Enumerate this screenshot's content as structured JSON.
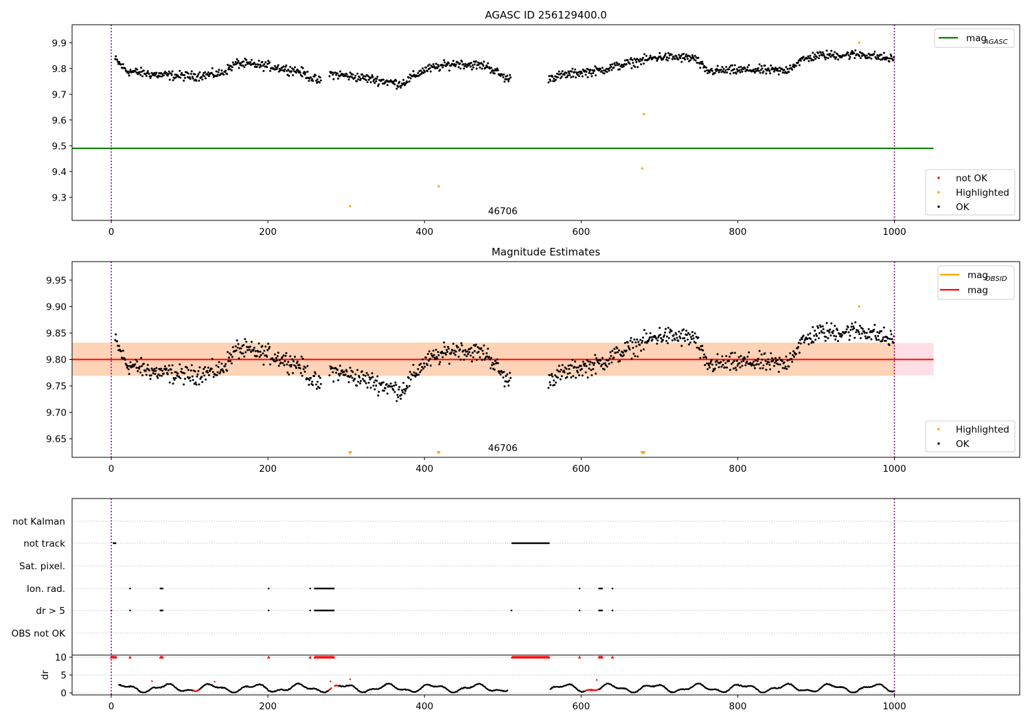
{
  "chart_data": [
    {
      "type": "scatter",
      "title": "AGASC ID 256129400.0",
      "ylim": [
        9.21,
        9.97
      ],
      "xlim": [
        -50,
        1160
      ],
      "x_ticks": [
        0,
        200,
        400,
        600,
        800,
        1000
      ],
      "y_ticks": [
        9.3,
        9.4,
        9.5,
        9.6,
        9.7,
        9.8,
        9.9
      ],
      "y_tick_labels": [
        "9.3",
        "9.4",
        "9.5",
        "9.6",
        "9.7",
        "9.8",
        "9.9"
      ],
      "obsid_label": "46706",
      "obsid_label_x": 500,
      "obs_boundaries": [
        0,
        1000
      ],
      "reference_line": {
        "name": "mag",
        "subscript": "AGASC",
        "value": 9.49,
        "x_range": [
          -50,
          1050
        ],
        "color": "#008000"
      },
      "legend_lines": [
        {
          "label": "mag",
          "subscript": "AGASC",
          "color": "#008000"
        }
      ],
      "legend_points": [
        {
          "label": "not OK",
          "color": "#ff0000"
        },
        {
          "label": "Highlighted",
          "color": "#ffa500"
        },
        {
          "label": "OK",
          "color": "#000000"
        }
      ],
      "series": [
        {
          "name": "OK",
          "color": "#000000",
          "description": "Star magnitude samples around 9.73–9.87 for x 5–510 and 560–1000"
        },
        {
          "name": "Highlighted",
          "color": "#ffa500",
          "x": [
            305,
            418,
            678,
            680,
            955
          ],
          "y": [
            9.265,
            9.342,
            9.412,
            9.623,
            9.9
          ]
        }
      ]
    },
    {
      "type": "scatter",
      "title": "Magnitude Estimates",
      "ylim": [
        9.615,
        9.985
      ],
      "xlim": [
        -50,
        1160
      ],
      "x_ticks": [
        0,
        200,
        400,
        600,
        800,
        1000
      ],
      "y_ticks": [
        9.65,
        9.7,
        9.75,
        9.8,
        9.85,
        9.9,
        9.95
      ],
      "y_tick_labels": [
        "9.65",
        "9.70",
        "9.75",
        "9.80",
        "9.85",
        "9.90",
        "9.95"
      ],
      "obsid_label": "46706",
      "obsid_label_x": 500,
      "obs_boundaries": [
        0,
        1000
      ],
      "mag_line": {
        "label": "mag",
        "value": 9.8,
        "x_range": [
          -50,
          1050
        ],
        "color": "#ff0000"
      },
      "mag_band": {
        "low": 9.77,
        "high": 9.831,
        "x_range": [
          -50,
          1050
        ],
        "color": "#ffc0cb"
      },
      "mag_obsid_band": {
        "low": 9.77,
        "high": 9.831,
        "x_range": [
          -50,
          1000
        ],
        "color": "#ffa500"
      },
      "legend_lines": [
        {
          "label": "mag",
          "subscript": "OBSID",
          "color": "#ffa500"
        },
        {
          "label": "mag",
          "subscript": "",
          "color": "#ff0000"
        }
      ],
      "legend_points": [
        {
          "label": "Highlighted",
          "color": "#ffa500"
        },
        {
          "label": "OK",
          "color": "#000000"
        }
      ],
      "series": [
        {
          "name": "OK",
          "color": "#000000",
          "description": "Star magnitude samples around 9.73–9.87"
        },
        {
          "name": "Highlighted",
          "color": "#ffa500",
          "x": [
            955
          ],
          "y": [
            9.9
          ]
        },
        {
          "name": "Highlighted (out of range, clipped)",
          "color": "#ffa500",
          "x": [
            305,
            418,
            678,
            680
          ],
          "marker": "down-triangle"
        }
      ]
    },
    {
      "type": "scatter",
      "title": "",
      "xlim": [
        -50,
        1160
      ],
      "x_ticks": [
        0,
        200,
        400,
        600,
        800,
        1000
      ],
      "obs_boundaries": [
        0,
        1000
      ],
      "flag_rows": [
        "not Kalman",
        "not track",
        "Sat. pixel.",
        "Ion. rad.",
        "dr > 5",
        "OBS not OK"
      ],
      "flag_points": {
        "not Kalman": [],
        "not track": [
          [
            3,
            6
          ],
          [
            512,
            560
          ]
        ],
        "Sat. pixel.": [],
        "Ion. rad.": [
          [
            24,
            24
          ],
          [
            63,
            66
          ],
          [
            201,
            201
          ],
          [
            254,
            254
          ],
          [
            260,
            285
          ],
          [
            598,
            598
          ],
          [
            623,
            627
          ],
          [
            640,
            640
          ]
        ],
        "dr > 5": [
          [
            0,
            0
          ],
          [
            24,
            24
          ],
          [
            63,
            66
          ],
          [
            201,
            201
          ],
          [
            254,
            254
          ],
          [
            260,
            285
          ],
          [
            511,
            511
          ],
          [
            598,
            598
          ],
          [
            623,
            627
          ],
          [
            640,
            640
          ]
        ],
        "OBS not OK": []
      },
      "dr_panel": {
        "ylabel": "dr",
        "y_ticks": [
          0,
          5,
          10
        ],
        "y_tick_labels": [
          "0",
          "5",
          "10"
        ],
        "clip_value": 10,
        "clipped_ranges": [
          [
            0,
            6
          ],
          [
            24,
            24
          ],
          [
            63,
            66
          ],
          [
            201,
            201
          ],
          [
            254,
            254
          ],
          [
            260,
            285
          ],
          [
            512,
            560
          ],
          [
            598,
            598
          ],
          [
            623,
            627
          ],
          [
            640,
            640
          ]
        ],
        "description": "Residual distance dr, mostly 0–3, black OK points and red not-OK points"
      }
    }
  ]
}
